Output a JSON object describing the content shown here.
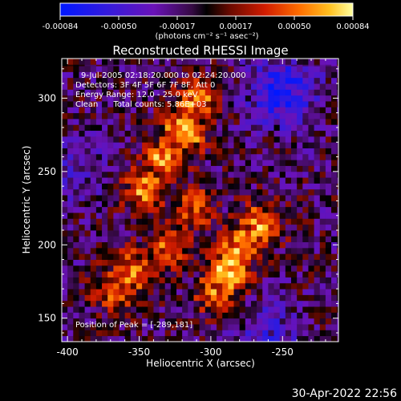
{
  "chart_data": {
    "type": "heatmap",
    "title": "Reconstructed RHESSI Image",
    "xlabel": "Heliocentric X (arcsec)",
    "ylabel": "Heliocentric Y (arcsec)",
    "xlim": [
      -404,
      -211
    ],
    "ylim": [
      134,
      327
    ],
    "x_ticks": [
      -400,
      -350,
      -300,
      -250
    ],
    "y_ticks": [
      150,
      200,
      250,
      300
    ],
    "colorbar": {
      "ticks": [
        "-0.00084",
        "-0.00050",
        "-0.00017",
        "0.00017",
        "0.00050",
        "0.00084"
      ],
      "unit_line": "(photons cm⁻² s⁻¹ asec⁻²)",
      "range": [
        -0.00084,
        0.00084
      ]
    },
    "annotations": [
      "9-Jul-2005 02:18:20.000 to 02:24:20.000",
      "Detectors: 3F 4F 5F 6F 7F 8F, Att 0",
      "Energy Range: 12.0 - 25.0 keV",
      "Clean      Total counts: 5.86E+03"
    ],
    "peak_label": "Position of Peak = [-289,181]",
    "peak": [
      -289,
      181
    ],
    "grid": false,
    "emission_sources": [
      {
        "x": -319,
        "y": 278,
        "intensity": 0.00084
      },
      {
        "x": -332,
        "y": 258,
        "intensity": 0.00075
      },
      {
        "x": -345,
        "y": 238,
        "intensity": 0.00068
      },
      {
        "x": -310,
        "y": 298,
        "intensity": 0.00068
      },
      {
        "x": -289,
        "y": 181,
        "intensity": 0.00084
      },
      {
        "x": -280,
        "y": 200,
        "intensity": 0.00072
      },
      {
        "x": -266,
        "y": 213,
        "intensity": 0.00066
      },
      {
        "x": -295,
        "y": 168,
        "intensity": 0.00062
      },
      {
        "x": -355,
        "y": 182,
        "intensity": 0.00066
      },
      {
        "x": -366,
        "y": 171,
        "intensity": 0.00058
      },
      {
        "x": -330,
        "y": 198,
        "intensity": 0.00055
      },
      {
        "x": -312,
        "y": 225,
        "intensity": 0.00048
      }
    ],
    "negative_sources": [
      {
        "x": -250,
        "y": 305,
        "intensity": -0.0006
      },
      {
        "x": -260,
        "y": 140,
        "intensity": -0.0003
      },
      {
        "x": -395,
        "y": 250,
        "intensity": -0.0002
      }
    ]
  },
  "footer": {
    "timestamp": "30-Apr-2022 22:56"
  }
}
